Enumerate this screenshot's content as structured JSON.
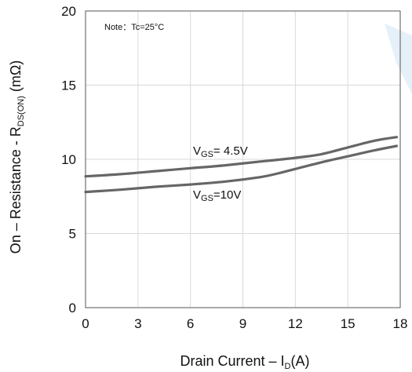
{
  "chart_data": {
    "type": "line",
    "xlabel_main": "Drain Current  –  I",
    "xlabel_sub": "D",
    "xlabel_tail": "(A)",
    "ylabel_main": "On – Resistance - R",
    "ylabel_sub": "DS(ON)",
    "ylabel_tail": " (mΩ)",
    "note": "Note：Tc=25°C",
    "xlim": [
      0,
      18
    ],
    "ylim": [
      0,
      20
    ],
    "x_ticks": [
      "0",
      "3",
      "6",
      "9",
      "12",
      "15",
      "18"
    ],
    "y_ticks": [
      "0",
      "5",
      "10",
      "15",
      "20"
    ],
    "grid": true,
    "series": [
      {
        "label_main": "V",
        "label_sub": "GS",
        "label_tail": "= 4.5V",
        "x": [
          0,
          2,
          4,
          6,
          8,
          10,
          12,
          13.5,
          15,
          16.5,
          17.8
        ],
        "y": [
          8.85,
          9.0,
          9.2,
          9.4,
          9.6,
          9.85,
          10.1,
          10.35,
          10.8,
          11.25,
          11.5
        ]
      },
      {
        "label_main": "V",
        "label_sub": "GS",
        "label_tail": "=10V",
        "x": [
          0,
          2,
          4,
          6,
          8,
          10,
          11,
          12,
          13.5,
          15,
          16.5,
          17.8
        ],
        "y": [
          7.8,
          7.95,
          8.15,
          8.3,
          8.5,
          8.8,
          9.05,
          9.35,
          9.8,
          10.2,
          10.6,
          10.9
        ]
      }
    ]
  }
}
